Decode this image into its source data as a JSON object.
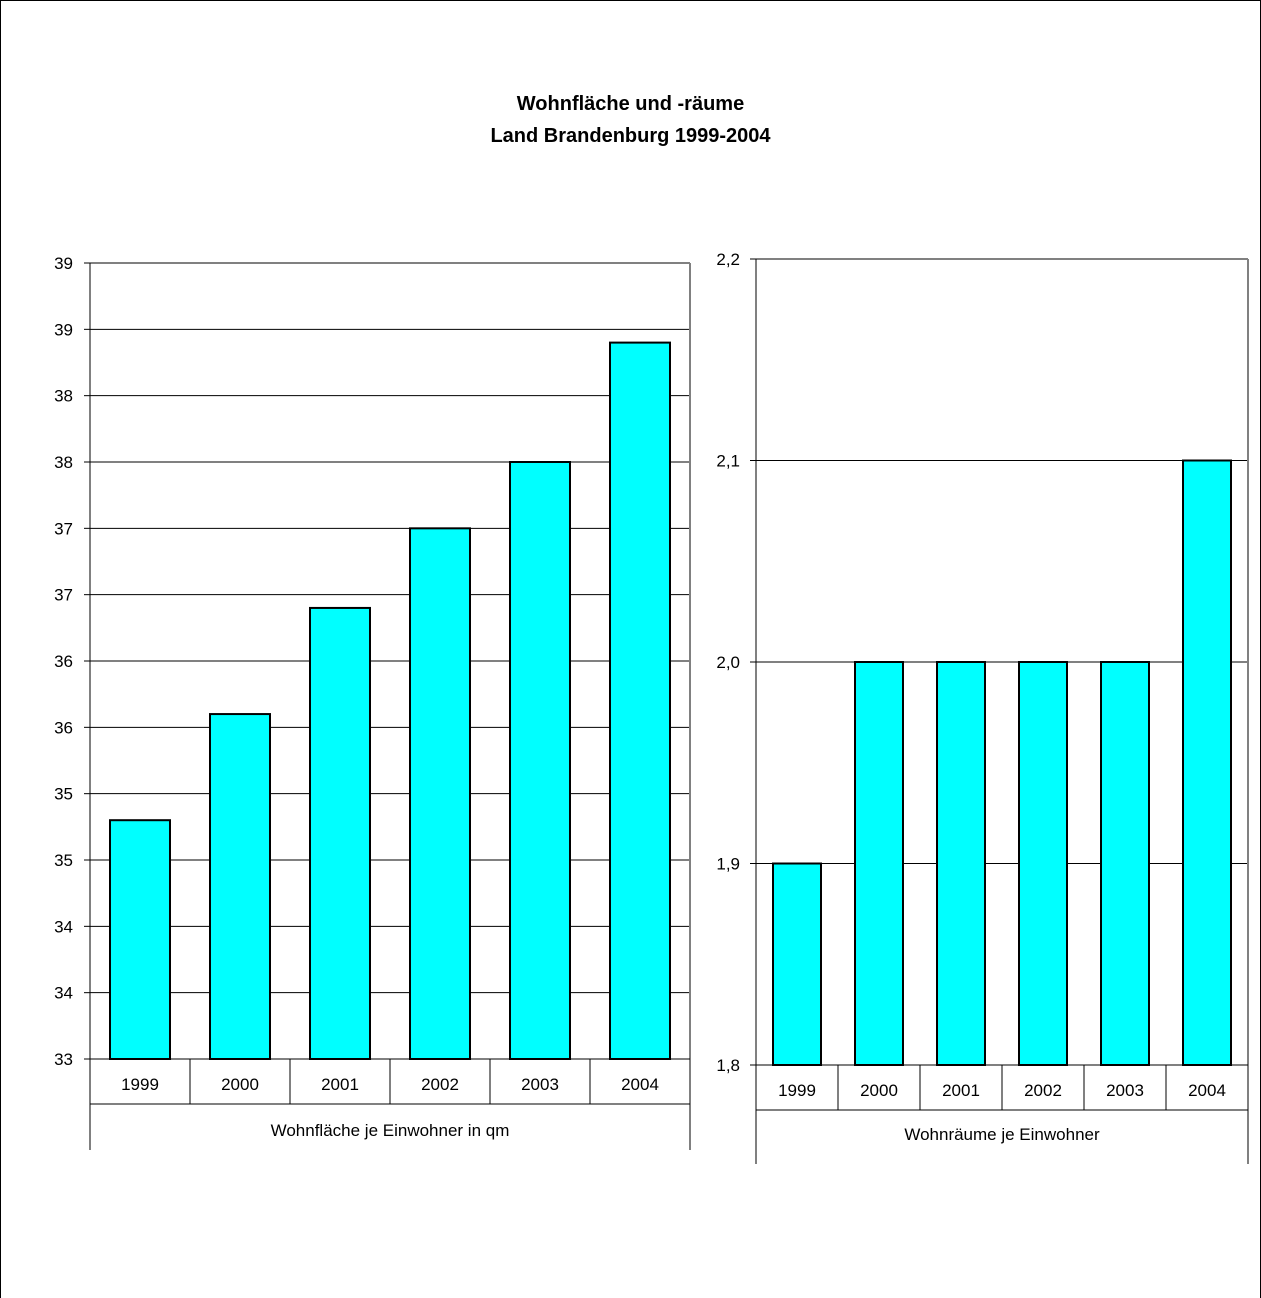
{
  "title": {
    "line1": "Wohnfläche und -räume",
    "line2": "Land Brandenburg 1999-2004"
  },
  "colors": {
    "bar": "#00ffff",
    "bar_stroke": "#000000",
    "grid": "#000000",
    "frame": "#808080"
  },
  "chart_data": [
    {
      "type": "bar",
      "categories": [
        "1999",
        "2000",
        "2001",
        "2002",
        "2003",
        "2004"
      ],
      "values": [
        34.8,
        35.6,
        36.4,
        37.0,
        37.5,
        38.4
      ],
      "xlabel": "Wohnfläche je Einwohner in qm",
      "ylim": [
        33,
        39
      ],
      "yticks": [
        33,
        33.5,
        34,
        34.5,
        35,
        35.5,
        36,
        36.5,
        37,
        37.5,
        38,
        38.5,
        39
      ],
      "ytick_labels": [
        "33",
        "34",
        "34",
        "35",
        "35",
        "36",
        "36",
        "37",
        "37",
        "38",
        "38",
        "39",
        "39"
      ],
      "grid": true
    },
    {
      "type": "bar",
      "categories": [
        "1999",
        "2000",
        "2001",
        "2002",
        "2003",
        "2004"
      ],
      "values": [
        1.9,
        2.0,
        2.0,
        2.0,
        2.0,
        2.1
      ],
      "xlabel": "Wohnräume je Einwohner",
      "ylim": [
        1.8,
        2.2
      ],
      "yticks": [
        1.8,
        1.9,
        2.0,
        2.1,
        2.2
      ],
      "ytick_labels": [
        "1,8",
        "1,9",
        "2,0",
        "2,1",
        "2,2"
      ],
      "grid": true
    }
  ]
}
